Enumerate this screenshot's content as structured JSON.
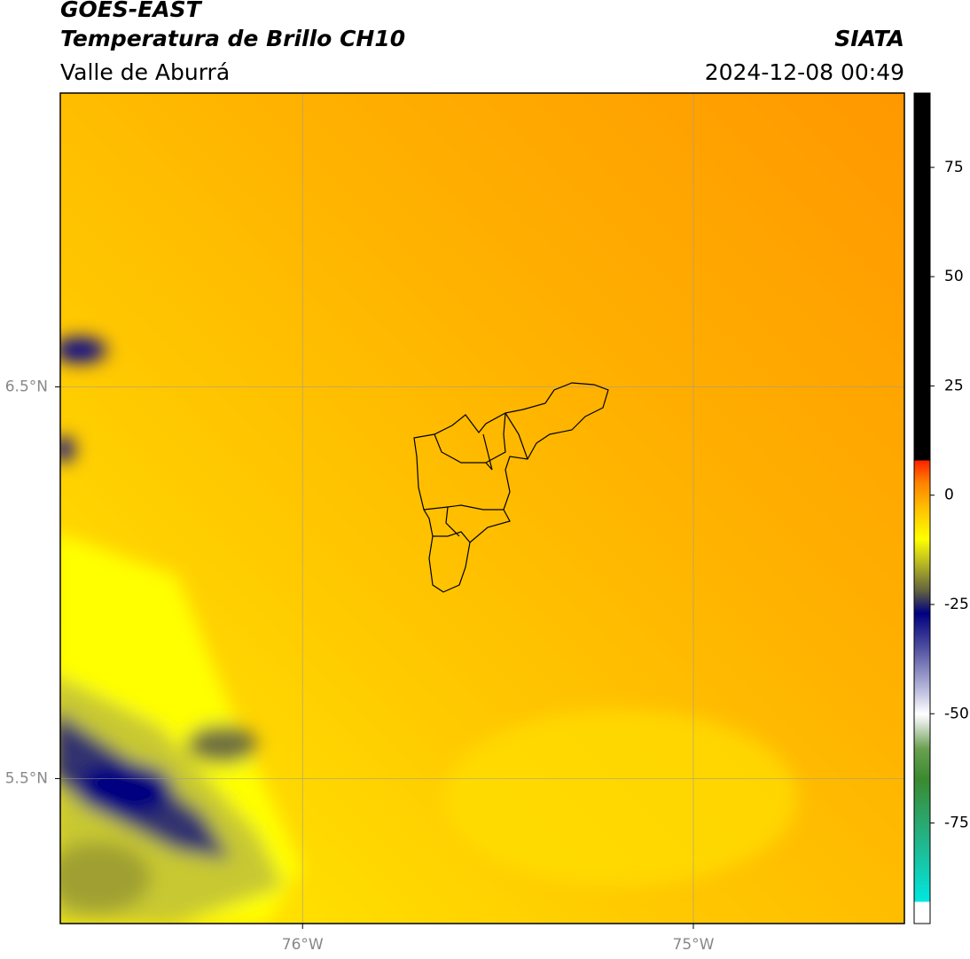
{
  "header": {
    "title": "GOES-EAST",
    "subtitle": "Temperatura de Brillo CH10",
    "region": "Valle de Aburrá",
    "source": "SIATA",
    "timestamp": "2024-12-08 00:49"
  },
  "map": {
    "xlim": [
      -76.62,
      -74.46
    ],
    "ylim": [
      5.13,
      7.25
    ],
    "xticks": [
      {
        "value": -76,
        "label": "76°W"
      },
      {
        "value": -75,
        "label": "75°W"
      }
    ],
    "yticks": [
      {
        "value": 6.5,
        "label": "6.5°N"
      },
      {
        "value": 5.5,
        "label": "5.5°N"
      }
    ],
    "grid": true
  },
  "colorbar": {
    "lim": [
      -98,
      92
    ],
    "ticks": [
      -75,
      -50,
      -25,
      0,
      25,
      50,
      75
    ],
    "colormap": [
      {
        "value": -98,
        "color": "#ffffff"
      },
      {
        "value": -93,
        "color": "#ffffff"
      },
      {
        "value": -93,
        "color": "#00e8e0"
      },
      {
        "value": -80,
        "color": "#20b890"
      },
      {
        "value": -65,
        "color": "#3a8a30"
      },
      {
        "value": -58,
        "color": "#6aa050"
      },
      {
        "value": -52,
        "color": "#e0e8e0"
      },
      {
        "value": -50,
        "color": "#ffffff"
      },
      {
        "value": -45,
        "color": "#c0c0e0"
      },
      {
        "value": -35,
        "color": "#5050a0"
      },
      {
        "value": -27,
        "color": "#000080"
      },
      {
        "value": -22,
        "color": "#606040"
      },
      {
        "value": -15,
        "color": "#c0c020"
      },
      {
        "value": -10,
        "color": "#ffff00"
      },
      {
        "value": -3,
        "color": "#ffc000"
      },
      {
        "value": 3,
        "color": "#ff8000"
      },
      {
        "value": 8,
        "color": "#ff2000"
      },
      {
        "value": 8,
        "color": "#000000"
      },
      {
        "value": 92,
        "color": "#000000"
      }
    ]
  }
}
